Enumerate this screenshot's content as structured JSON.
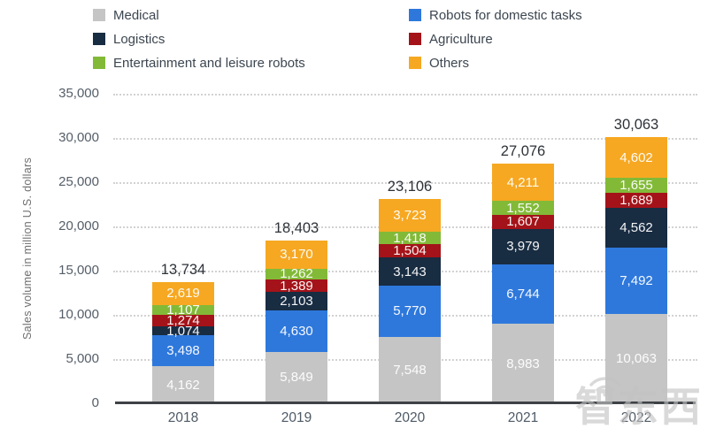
{
  "watermark": {
    "text": "智东西"
  },
  "chart_data": {
    "type": "bar",
    "stacked": true,
    "title": "",
    "xlabel": "",
    "ylabel": "Sales volume in million U.S. dollars",
    "ylim": [
      0,
      35000
    ],
    "ytick_step": 5000,
    "grid": "horizontal dotted",
    "legend_position": "top",
    "categories": [
      "2018",
      "2019",
      "2020",
      "2021",
      "2022"
    ],
    "totals": [
      "13,734",
      "18,403",
      "23,106",
      "27,076",
      "30,063"
    ],
    "series": [
      {
        "name": "Medical",
        "color": "#c5c5c5",
        "values": [
          4162,
          5849,
          7548,
          8983,
          10063
        ]
      },
      {
        "name": "Robots for domestic tasks",
        "color": "#2e78dc",
        "values": [
          3498,
          4630,
          5770,
          6744,
          7492
        ]
      },
      {
        "name": "Logistics",
        "color": "#182c42",
        "values": [
          1074,
          2103,
          3143,
          3979,
          4562
        ]
      },
      {
        "name": "Agriculture",
        "color": "#a41319",
        "values": [
          1274,
          1389,
          1504,
          1607,
          1689
        ]
      },
      {
        "name": "Entertainment and leisure robots",
        "color": "#82ba38",
        "values": [
          1107,
          1262,
          1418,
          1552,
          1655
        ]
      },
      {
        "name": "Others",
        "color": "#f6a822",
        "values": [
          2619,
          3170,
          3723,
          4211,
          4602
        ]
      }
    ]
  }
}
